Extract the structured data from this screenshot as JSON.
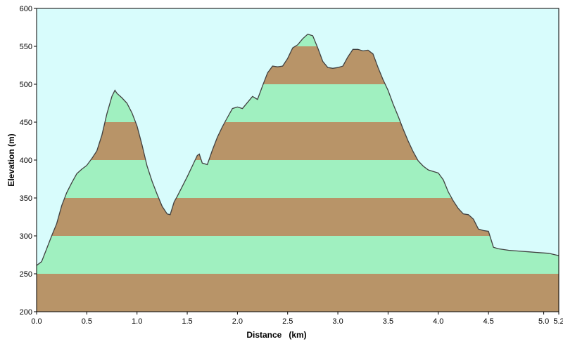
{
  "chart_data": {
    "type": "area",
    "title": "",
    "xlabel": "Distance   (km)",
    "ylabel": "Elevation (m)",
    "xlim": [
      0,
      5.2
    ],
    "ylim": [
      200,
      600
    ],
    "x_ticks": [
      {
        "value": 0.0,
        "label": "0.0"
      },
      {
        "value": 0.5,
        "label": "0.5"
      },
      {
        "value": 1.0,
        "label": "1.0"
      },
      {
        "value": 1.5,
        "label": "1.5"
      },
      {
        "value": 2.0,
        "label": "2.0"
      },
      {
        "value": 2.5,
        "label": "2.5"
      },
      {
        "value": 3.0,
        "label": "3.0"
      },
      {
        "value": 3.5,
        "label": "3.5"
      },
      {
        "value": 4.0,
        "label": "4.0"
      },
      {
        "value": 4.5,
        "label": "4.5"
      },
      {
        "value": 5.05,
        "label": "5.0"
      },
      {
        "value": 5.2,
        "label": "5.2"
      }
    ],
    "y_ticks": [
      200,
      250,
      300,
      350,
      400,
      450,
      500,
      550,
      600
    ],
    "band_step": 50,
    "grid": false,
    "legend": "none",
    "colors": {
      "sky": "#d8fcfc",
      "band_light": "#a0f0c0",
      "band_dark": "#b89468",
      "profile_line": "#404040",
      "axis": "#000000"
    },
    "series": [
      {
        "x": [
          0.0,
          0.05,
          0.1,
          0.15,
          0.2,
          0.25,
          0.3,
          0.35,
          0.4,
          0.45,
          0.5,
          0.55,
          0.6,
          0.65,
          0.7,
          0.75,
          0.78,
          0.8,
          0.85,
          0.9,
          0.95,
          1.0,
          1.05,
          1.1,
          1.15,
          1.2,
          1.25,
          1.3,
          1.33,
          1.37,
          1.4,
          1.5,
          1.55,
          1.6,
          1.62,
          1.65,
          1.7,
          1.75,
          1.8,
          1.85,
          1.9,
          1.95,
          2.0,
          2.05,
          2.1,
          2.15,
          2.2,
          2.25,
          2.3,
          2.35,
          2.4,
          2.45,
          2.5,
          2.55,
          2.6,
          2.65,
          2.7,
          2.75,
          2.8,
          2.85,
          2.9,
          2.95,
          3.0,
          3.05,
          3.1,
          3.15,
          3.2,
          3.25,
          3.3,
          3.35,
          3.4,
          3.45,
          3.5,
          3.55,
          3.6,
          3.65,
          3.7,
          3.75,
          3.8,
          3.85,
          3.9,
          3.95,
          4.0,
          4.05,
          4.1,
          4.15,
          4.2,
          4.25,
          4.3,
          4.35,
          4.4,
          4.45,
          4.5,
          4.55,
          4.6,
          4.7,
          4.8,
          4.9,
          5.0,
          5.1,
          5.2
        ],
        "y": [
          261,
          266,
          283,
          300,
          316,
          340,
          357,
          370,
          382,
          388,
          393,
          402,
          412,
          433,
          461,
          484,
          492,
          488,
          482,
          475,
          462,
          445,
          420,
          392,
          372,
          355,
          339,
          329,
          328,
          345,
          352,
          378,
          392,
          406,
          408,
          396,
          394,
          413,
          430,
          444,
          456,
          468,
          470,
          468,
          476,
          484,
          480,
          498,
          515,
          524,
          523,
          524,
          534,
          548,
          552,
          560,
          566,
          564,
          548,
          530,
          522,
          521,
          522,
          524,
          536,
          546,
          546,
          544,
          545,
          540,
          522,
          506,
          492,
          474,
          458,
          441,
          425,
          411,
          399,
          392,
          387,
          385,
          383,
          374,
          358,
          346,
          336,
          329,
          328,
          322,
          309,
          307,
          306,
          285,
          283,
          281,
          280,
          279,
          278,
          277,
          274
        ]
      }
    ]
  }
}
